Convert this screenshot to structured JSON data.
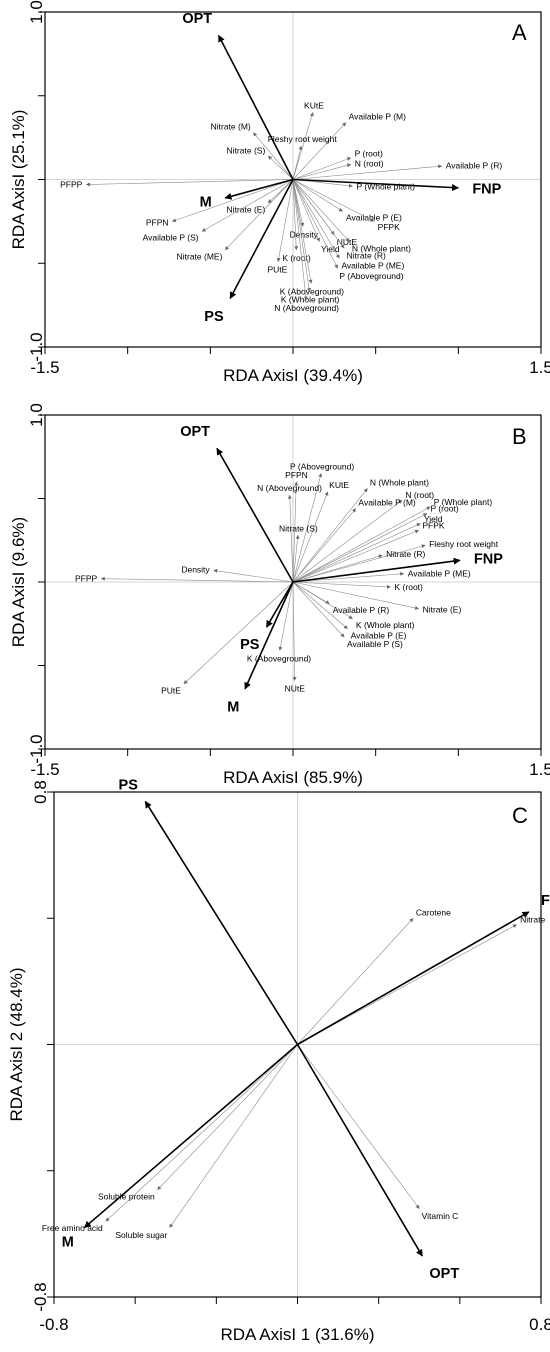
{
  "chart_data": [
    {
      "type": "scatter",
      "panel": "A",
      "xlabel": "RDA  AxisI (39.4%)",
      "ylabel": "RDA AxisI (25.1%)",
      "xlim": [
        -1.5,
        1.5
      ],
      "ylim": [
        -1.0,
        1.0
      ],
      "x_tick_labels": [
        "-1.5",
        "1.5"
      ],
      "y_tick_labels": [
        "1.0",
        "-1.0"
      ],
      "environment_vectors": [
        {
          "label": "OPT",
          "x": -0.45,
          "y": 0.86
        },
        {
          "label": "M",
          "x": -0.41,
          "y": -0.11
        },
        {
          "label": "FNP",
          "x": 1.0,
          "y": -0.05
        },
        {
          "label": "PS",
          "x": -0.38,
          "y": -0.71
        }
      ],
      "response_vectors": [
        {
          "label": "KUtE",
          "x": 0.12,
          "y": 0.4
        },
        {
          "label": "Available P (M)",
          "x": 0.32,
          "y": 0.34
        },
        {
          "label": "Nitrate (M)",
          "x": -0.24,
          "y": 0.28
        },
        {
          "label": "Fleshy root weight",
          "x": 0.05,
          "y": 0.2
        },
        {
          "label": "Nitrate (S)",
          "x": -0.15,
          "y": 0.14
        },
        {
          "label": "P (root)",
          "x": 0.35,
          "y": 0.13
        },
        {
          "label": "N (root)",
          "x": 0.35,
          "y": 0.09
        },
        {
          "label": "Available P (R)",
          "x": 0.9,
          "y": 0.08
        },
        {
          "label": "PFPP",
          "x": -1.25,
          "y": -0.03
        },
        {
          "label": "P (Whole plant)",
          "x": 0.36,
          "y": -0.04
        },
        {
          "label": "Nitrate (E)",
          "x": -0.15,
          "y": -0.14
        },
        {
          "label": "PFPN",
          "x": -0.73,
          "y": -0.25
        },
        {
          "label": "Available P (E)",
          "x": 0.3,
          "y": -0.19
        },
        {
          "label": "PFPK",
          "x": 0.49,
          "y": -0.25
        },
        {
          "label": "Available P (S)",
          "x": -0.55,
          "y": -0.31
        },
        {
          "label": "Density",
          "x": 0.06,
          "y": -0.28
        },
        {
          "label": "NUtE",
          "x": 0.25,
          "y": -0.33
        },
        {
          "label": "Yield",
          "x": 0.16,
          "y": -0.37
        },
        {
          "label": "N (Whole plant)",
          "x": 0.34,
          "y": -0.37
        },
        {
          "label": "K (root)",
          "x": 0.02,
          "y": -0.42
        },
        {
          "label": "Nitrate (R)",
          "x": 0.31,
          "y": -0.41
        },
        {
          "label": "Nitrate (ME)",
          "x": -0.41,
          "y": -0.42
        },
        {
          "label": "Available P (ME)",
          "x": 0.28,
          "y": -0.47
        },
        {
          "label": "PUtE",
          "x": -0.09,
          "y": -0.49
        },
        {
          "label": "P (Aboveground)",
          "x": 0.27,
          "y": -0.53
        },
        {
          "label": "K (Aboveground)",
          "x": 0.11,
          "y": -0.62
        },
        {
          "label": "K (Whole plant)",
          "x": 0.1,
          "y": -0.67
        },
        {
          "label": "N (Aboveground)",
          "x": 0.08,
          "y": -0.72
        }
      ]
    },
    {
      "type": "scatter",
      "panel": "B",
      "xlabel": "RDA AxisI (85.9%)",
      "ylabel": "RDA AxisI (9.6%)",
      "xlim": [
        -1.5,
        1.5
      ],
      "ylim": [
        -1.0,
        1.0
      ],
      "x_tick_labels": [
        "-1.5",
        "1.5"
      ],
      "y_tick_labels": [
        "1.0",
        "-1.0"
      ],
      "environment_vectors": [
        {
          "label": "OPT",
          "x": -0.46,
          "y": 0.8
        },
        {
          "label": "FNP",
          "x": 1.01,
          "y": 0.13
        },
        {
          "label": "PS",
          "x": -0.16,
          "y": -0.27
        },
        {
          "label": "M",
          "x": -0.29,
          "y": -0.64
        }
      ],
      "response_vectors": [
        {
          "label": "PFPN",
          "x": 0.02,
          "y": 0.6
        },
        {
          "label": "P (Aboveground)",
          "x": 0.17,
          "y": 0.65
        },
        {
          "label": "N (Aboveground)",
          "x": -0.02,
          "y": 0.52
        },
        {
          "label": "KUtE",
          "x": 0.21,
          "y": 0.54
        },
        {
          "label": "N (Whole plant)",
          "x": 0.45,
          "y": 0.56
        },
        {
          "label": "N (root)",
          "x": 0.66,
          "y": 0.49
        },
        {
          "label": "Available P (M)",
          "x": 0.38,
          "y": 0.44
        },
        {
          "label": "P (Whole plant)",
          "x": 0.83,
          "y": 0.45
        },
        {
          "label": "P (root)",
          "x": 0.81,
          "y": 0.41
        },
        {
          "label": "Yield",
          "x": 0.77,
          "y": 0.35
        },
        {
          "label": "PFPK",
          "x": 0.76,
          "y": 0.31
        },
        {
          "label": "Nitrate (S)",
          "x": 0.03,
          "y": 0.28
        },
        {
          "label": "Fleshy root weight",
          "x": 0.8,
          "y": 0.22
        },
        {
          "label": "Nitrate (R)",
          "x": 0.54,
          "y": 0.16
        },
        {
          "label": "Density",
          "x": -0.48,
          "y": 0.07
        },
        {
          "label": "Available P (ME)",
          "x": 0.67,
          "y": 0.05
        },
        {
          "label": "PFPP",
          "x": -1.16,
          "y": 0.02
        },
        {
          "label": "K (root)",
          "x": 0.59,
          "y": -0.03
        },
        {
          "label": "Available P (R)",
          "x": 0.22,
          "y": -0.13
        },
        {
          "label": "Nitrate (E)",
          "x": 0.76,
          "y": -0.16
        },
        {
          "label": "K (Whole plant)",
          "x": 0.36,
          "y": -0.22
        },
        {
          "label": "Available P (E)",
          "x": 0.33,
          "y": -0.28
        },
        {
          "label": "Available P (S)",
          "x": 0.31,
          "y": -0.33
        },
        {
          "label": "K (Aboveground)",
          "x": -0.08,
          "y": -0.41
        },
        {
          "label": "PUtE",
          "x": -0.66,
          "y": -0.61
        },
        {
          "label": "NUtE",
          "x": 0.01,
          "y": -0.59
        }
      ]
    },
    {
      "type": "scatter",
      "panel": "C",
      "xlabel": "RDA  AxisI 1 (31.6%)",
      "ylabel": "RDA  AxisI 2 (48.4%)",
      "xlim": [
        -0.8,
        0.8
      ],
      "ylim": [
        -0.8,
        0.8
      ],
      "x_tick_labels": [
        "-0.8",
        "0.8"
      ],
      "y_tick_labels": [
        "0.8",
        "-0.8"
      ],
      "environment_vectors": [
        {
          "label": "PS",
          "x": -0.5,
          "y": 0.77
        },
        {
          "label": "FNP",
          "x": 0.76,
          "y": 0.42
        },
        {
          "label": "M",
          "x": -0.7,
          "y": -0.58
        },
        {
          "label": "OPT",
          "x": 0.41,
          "y": -0.67
        }
      ],
      "response_vectors": [
        {
          "label": "Carotene",
          "x": 0.38,
          "y": 0.4
        },
        {
          "label": "Nitrate",
          "x": 0.72,
          "y": 0.38
        },
        {
          "label": "Vitamin C",
          "x": 0.4,
          "y": -0.52
        },
        {
          "label": "Soluble protein",
          "x": -0.46,
          "y": -0.46
        },
        {
          "label": "Free amino acid",
          "x": -0.63,
          "y": -0.56
        },
        {
          "label": "Soluble sugar",
          "x": -0.42,
          "y": -0.58
        }
      ]
    }
  ]
}
